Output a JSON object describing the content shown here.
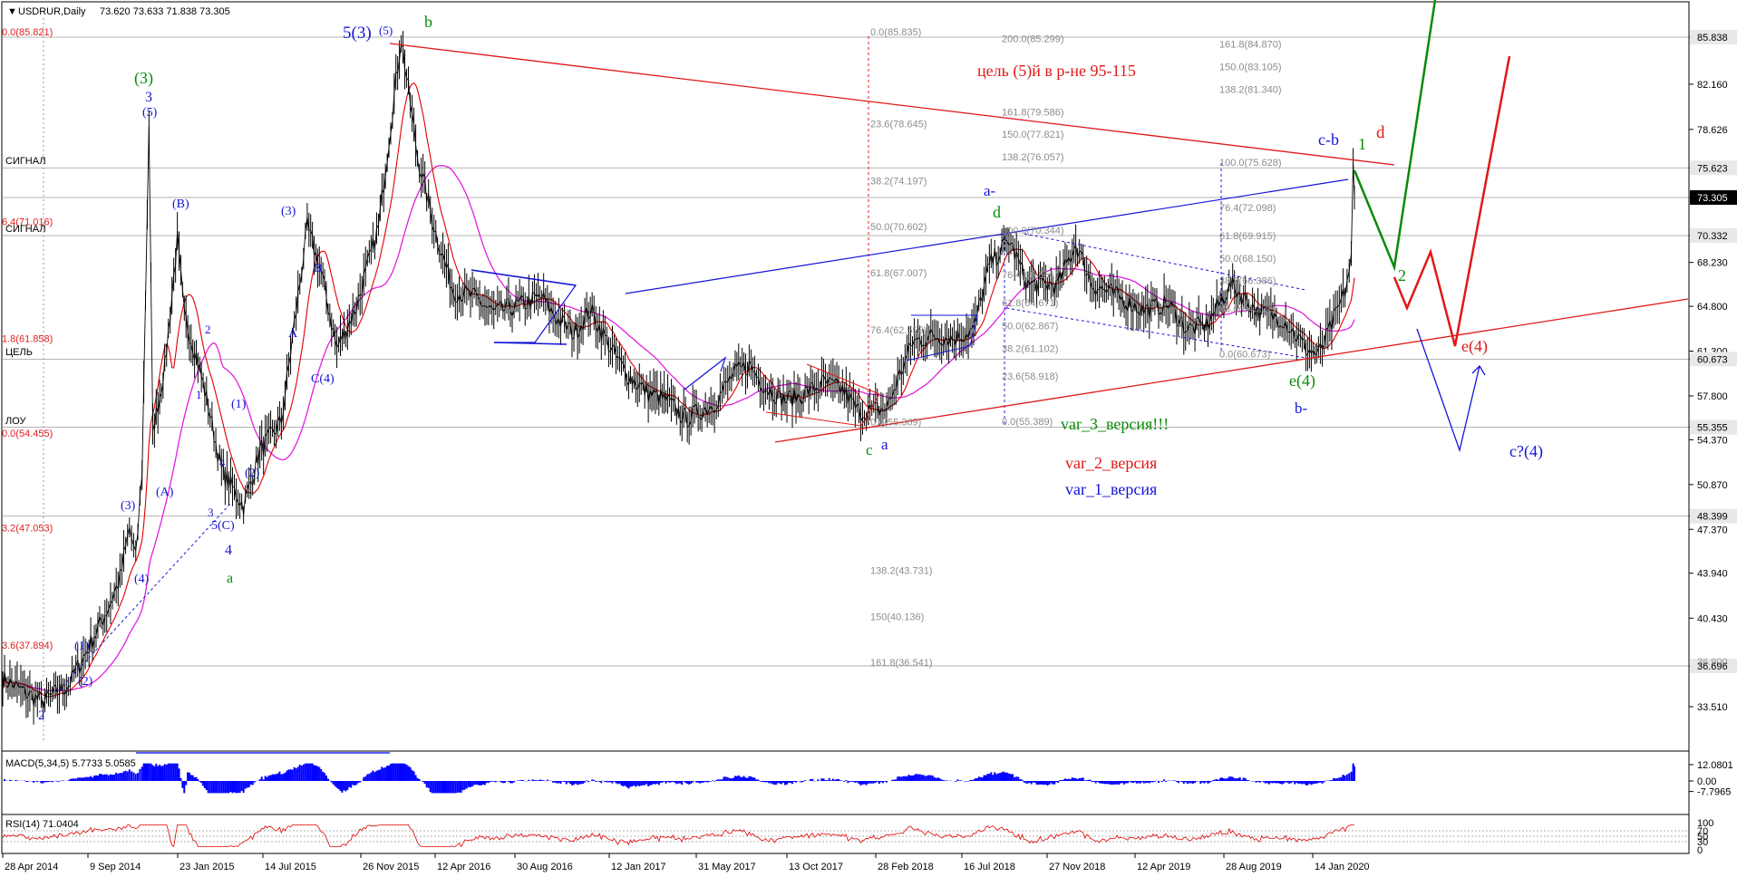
{
  "header": {
    "symbol": "USDRUR,Daily",
    "ohlc": "73.620 73.633 71.838 73.305"
  },
  "colors": {
    "price_box_bg": "#000000",
    "level_box_bg": "#e8e8e8",
    "macd": "#0000ff",
    "rsi": "#e00000",
    "ma_fast": "#e00000",
    "ma_slow": "#e020e0"
  },
  "chart_data": [
    {
      "type": "line",
      "title": "USDRUR,Daily",
      "ylim": [
        32.0,
        87.2
      ],
      "y_ticks": [
        "85.838",
        "82.160",
        "78.626",
        "75.623",
        "73.305",
        "70.332",
        "68.230",
        "64.800",
        "61.300",
        "60.673",
        "57.800",
        "55.355",
        "54.370",
        "50.870",
        "48.399",
        "47.370",
        "43.940",
        "40.430",
        "36.696",
        "33.510"
      ],
      "y_ticks_hidden": [
        "36.900"
      ],
      "x_ticks": [
        "28 Apr 2014",
        "9 Sep 2014",
        "23 Jan 2015",
        "14 Jul 2015",
        "26 Nov 2015",
        "12 Apr 2016",
        "30 Aug 2016",
        "12 Jan 2017",
        "31 May 2017",
        "13 Oct 2017",
        "28 Feb 2018",
        "16 Jul 2018",
        "27 Nov 2018",
        "12 Apr 2019",
        "28 Aug 2019",
        "14 Jan 2020"
      ],
      "x_range": [
        "28 Apr 2014",
        "11 Mar 2020"
      ],
      "series": [
        {
          "values": [
            {
              "x": "2014-04-28",
              "y": 35.7
            },
            {
              "x": "2014-06-10",
              "y": 34.4
            },
            {
              "x": "2014-07-01",
              "y": 33.9
            },
            {
              "x": "2014-08-10",
              "y": 35.2
            },
            {
              "x": "2014-09-09",
              "y": 37.9
            },
            {
              "x": "2014-10-10",
              "y": 41.0
            },
            {
              "x": "2014-10-31",
              "y": 43.5
            },
            {
              "x": "2014-11-15",
              "y": 47.5
            },
            {
              "x": "2014-11-25",
              "y": 45.0
            },
            {
              "x": "2014-12-05",
              "y": 52.0
            },
            {
              "x": "2014-12-16",
              "y": 79.0
            },
            {
              "x": "2014-12-22",
              "y": 55.0
            },
            {
              "x": "2015-01-10",
              "y": 60.0
            },
            {
              "x": "2015-01-30",
              "y": 70.0
            },
            {
              "x": "2015-02-10",
              "y": 64.0
            },
            {
              "x": "2015-03-01",
              "y": 61.0
            },
            {
              "x": "2015-03-20",
              "y": 57.0
            },
            {
              "x": "2015-04-10",
              "y": 52.0
            },
            {
              "x": "2015-05-15",
              "y": 49.2
            },
            {
              "x": "2015-06-10",
              "y": 53.5
            },
            {
              "x": "2015-07-14",
              "y": 55.8
            },
            {
              "x": "2015-08-24",
              "y": 71.0
            },
            {
              "x": "2015-09-15",
              "y": 67.5
            },
            {
              "x": "2015-10-10",
              "y": 61.5
            },
            {
              "x": "2015-11-10",
              "y": 64.8
            },
            {
              "x": "2015-12-15",
              "y": 71.0
            },
            {
              "x": "2016-01-20",
              "y": 85.8
            },
            {
              "x": "2016-02-15",
              "y": 76.5
            },
            {
              "x": "2016-03-15",
              "y": 70.5
            },
            {
              "x": "2016-04-12",
              "y": 66.0
            },
            {
              "x": "2016-05-15",
              "y": 65.5
            },
            {
              "x": "2016-06-15",
              "y": 64.3
            },
            {
              "x": "2016-07-20",
              "y": 64.8
            },
            {
              "x": "2016-08-30",
              "y": 65.5
            },
            {
              "x": "2016-09-20",
              "y": 64.0
            },
            {
              "x": "2016-10-20",
              "y": 62.7
            },
            {
              "x": "2016-11-15",
              "y": 64.5
            },
            {
              "x": "2016-12-20",
              "y": 61.3
            },
            {
              "x": "2017-01-12",
              "y": 59.5
            },
            {
              "x": "2017-02-15",
              "y": 58.0
            },
            {
              "x": "2017-03-15",
              "y": 57.5
            },
            {
              "x": "2017-04-15",
              "y": 56.0
            },
            {
              "x": "2017-05-31",
              "y": 57.2
            },
            {
              "x": "2017-06-30",
              "y": 59.5
            },
            {
              "x": "2017-07-25",
              "y": 60.2
            },
            {
              "x": "2017-08-20",
              "y": 58.5
            },
            {
              "x": "2017-09-20",
              "y": 57.5
            },
            {
              "x": "2017-10-13",
              "y": 57.8
            },
            {
              "x": "2017-11-20",
              "y": 58.8
            },
            {
              "x": "2017-12-20",
              "y": 58.3
            },
            {
              "x": "2018-01-15",
              "y": 56.5
            },
            {
              "x": "2018-02-28",
              "y": 56.8
            },
            {
              "x": "2018-04-10",
              "y": 62.0
            },
            {
              "x": "2018-05-15",
              "y": 62.5
            },
            {
              "x": "2018-06-15",
              "y": 62.3
            },
            {
              "x": "2018-07-16",
              "y": 63.0
            },
            {
              "x": "2018-08-10",
              "y": 68.0
            },
            {
              "x": "2018-09-10",
              "y": 70.0
            },
            {
              "x": "2018-10-10",
              "y": 66.5
            },
            {
              "x": "2018-11-27",
              "y": 66.5
            },
            {
              "x": "2018-12-25",
              "y": 69.7
            },
            {
              "x": "2019-01-20",
              "y": 66.5
            },
            {
              "x": "2019-02-20",
              "y": 65.8
            },
            {
              "x": "2019-04-12",
              "y": 64.5
            },
            {
              "x": "2019-05-20",
              "y": 65.0
            },
            {
              "x": "2019-06-20",
              "y": 63.0
            },
            {
              "x": "2019-07-20",
              "y": 63.3
            },
            {
              "x": "2019-08-28",
              "y": 66.5
            },
            {
              "x": "2019-10-10",
              "y": 64.4
            },
            {
              "x": "2019-11-20",
              "y": 63.8
            },
            {
              "x": "2019-12-25",
              "y": 61.5
            },
            {
              "x": "2020-01-14",
              "y": 61.0
            },
            {
              "x": "2020-02-10",
              "y": 64.0
            },
            {
              "x": "2020-02-25",
              "y": 66.0
            },
            {
              "x": "2020-03-06",
              "y": 68.5
            },
            {
              "x": "2020-03-09",
              "y": 75.6
            },
            {
              "x": "2020-03-11",
              "y": 73.3
            }
          ]
        }
      ]
    },
    {
      "type": "area",
      "title": "MACD(5,34,5) 5.7733 5.0585",
      "y_ticks": [
        "12.0801",
        "0.00",
        "-7.7965"
      ],
      "ylim": [
        -9.0,
        13.0
      ]
    },
    {
      "type": "line",
      "title": "RSI(14) 71.0404",
      "y_ticks": [
        "100",
        "70",
        "50",
        "30",
        "0"
      ],
      "ylim": [
        0,
        100
      ]
    }
  ],
  "sys_labels": {
    "signal_upper": "СИГНАЛ",
    "signal_lower": "СИГНАЛ",
    "target": "ЦЕЛЬ",
    "low": "ЛОУ"
  },
  "fib_left": [
    "0.0(85.821)",
    "6.4(71.016)",
    "1.8(61.858)",
    "0.0(54.455)",
    "3.2(47.053)",
    "3.6(37.894)"
  ],
  "fib_mid": [
    "0.0(85.835)",
    "23.6(78.645)",
    "38.2(74.197)",
    "50.0(70.602)",
    "61.8(67.007)",
    "76.4(62.559)",
    "0.0(55.369)",
    "138.2(43.731)",
    "150(40.136)",
    "161.8(36.541)"
  ],
  "fib_mid2": [
    "200.0(85.299)",
    "161.8(79.586)",
    "150.0(77.821)",
    "138.2(76.057)",
    "100.0(70.344)",
    "76.4(66.851)",
    "61.8(64.671)",
    "50.0(62.867)",
    "38.2(61.102)",
    "23.6(58.918)",
    "0.0(55.389)"
  ],
  "fib_right": [
    "161.8(84.870)",
    "150.0(83.105)",
    "138.2(81.340)",
    "100.0(75.628)",
    "76.4(72.098)",
    "61.8(69.915)",
    "50.0(68.150)",
    "38.2(66.386)",
    "23.6(64.202)",
    "0.0(60.673)"
  ],
  "annotations": {
    "target_text": "цель (5)й в р-не 95-115",
    "var3": "var_3_версия!!!",
    "var2": "var_2_версия",
    "var1": "var_1_версия",
    "w_3p": "(3)",
    "w_3": "3",
    "w_5p": "(5)",
    "w_B": "(B)",
    "w_Ap": "(A)",
    "w_3pb": "(3)",
    "w_4p": "(4)",
    "w_1p": "(1)",
    "w_2p": "(2)",
    "w_2": "2",
    "w_1": "1",
    "w_2b": "2",
    "w_4": "4",
    "w_3s": "3",
    "w_5C": "5(C)",
    "w_4big": "4",
    "w_a": "a",
    "w_1pb": "(1)",
    "w_2pb": "(2)",
    "w_3pc": "(3)",
    "w_Bs": "B",
    "w_As": "A",
    "w_C4": "C(4)",
    "w_533": "5(3)",
    "w_5s": "(5)",
    "w_b": "b",
    "w_c": "c",
    "w_ablue": "a",
    "w_aminus": "a-",
    "w_d": "d",
    "w_e4": "e(4)",
    "w_bminus": "b-",
    "w_cb": "c-b",
    "w_g1": "1",
    "w_rd": "d",
    "w_g2": "2",
    "w_re4": "e(4)",
    "w_c4": "c?(4)"
  }
}
